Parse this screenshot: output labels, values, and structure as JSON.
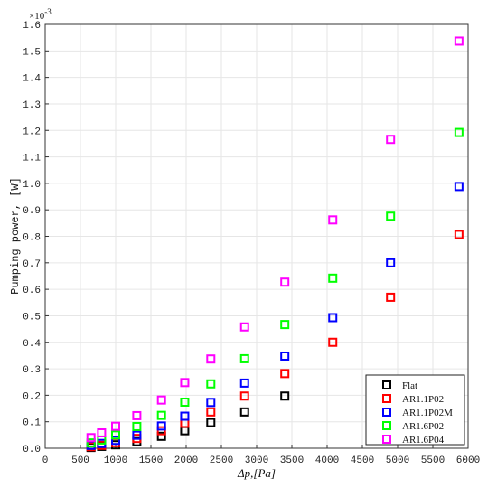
{
  "chart_data": {
    "type": "scatter",
    "xlabel": "Δp,[Pa]",
    "ylabel": "Pumping power, [W]",
    "y_multiplier": "×10",
    "y_multiplier_exp": "-3",
    "xlim": [
      0,
      6000
    ],
    "ylim": [
      0,
      1.6
    ],
    "xticks": [
      0,
      500,
      1000,
      1500,
      2000,
      2500,
      3000,
      3500,
      4000,
      4500,
      5000,
      5500,
      6000
    ],
    "yticks": [
      0,
      0.1,
      0.2,
      0.3,
      0.4,
      0.5,
      0.6,
      0.7,
      0.8,
      0.9,
      1.0,
      1.1,
      1.2,
      1.3,
      1.4,
      1.5,
      1.6
    ],
    "ytick_labels": [
      "0.0",
      "0.1",
      "0.2",
      "0.3",
      "0.4",
      "0.5",
      "0.6",
      "0.7",
      "0.8",
      "0.9",
      "1.0",
      "1.1",
      "1.2",
      "1.3",
      "1.4",
      "1.5",
      "1.6"
    ],
    "grid": true,
    "legend_position": "bottom-right",
    "marker": "square-open",
    "series": [
      {
        "name": "Flat",
        "color": "#000000",
        "x": [
          650,
          800,
          1000,
          1300,
          1650,
          1980,
          2350,
          2830,
          3400
        ],
        "y": [
          0.003,
          0.007,
          0.013,
          0.025,
          0.045,
          0.066,
          0.097,
          0.137,
          0.197
        ]
      },
      {
        "name": "AR1.1P02",
        "color": "#ff0000",
        "x": [
          650,
          800,
          1000,
          1300,
          1650,
          1980,
          2350,
          2830,
          3400,
          4080,
          4900,
          5870
        ],
        "y": [
          0.006,
          0.011,
          0.021,
          0.037,
          0.066,
          0.094,
          0.137,
          0.197,
          0.282,
          0.4,
          0.57,
          0.807
        ]
      },
      {
        "name": "AR1.1P02M",
        "color": "#0000ff",
        "x": [
          650,
          800,
          1000,
          1300,
          1650,
          1980,
          2350,
          2830,
          3400,
          4080,
          4900,
          5870
        ],
        "y": [
          0.011,
          0.018,
          0.03,
          0.049,
          0.084,
          0.121,
          0.173,
          0.246,
          0.348,
          0.493,
          0.7,
          0.988
        ]
      },
      {
        "name": "AR1.6P02",
        "color": "#00ff00",
        "x": [
          650,
          800,
          1000,
          1300,
          1650,
          1980,
          2350,
          2830,
          3400,
          4080,
          4900,
          5870
        ],
        "y": [
          0.02,
          0.031,
          0.05,
          0.082,
          0.124,
          0.174,
          0.243,
          0.338,
          0.467,
          0.642,
          0.876,
          1.192
        ]
      },
      {
        "name": "AR1.6P04",
        "color": "#ff00ff",
        "x": [
          650,
          800,
          1000,
          1300,
          1650,
          1980,
          2350,
          2830,
          3400,
          4080,
          4900,
          5870
        ],
        "y": [
          0.04,
          0.058,
          0.083,
          0.123,
          0.182,
          0.248,
          0.337,
          0.458,
          0.627,
          0.862,
          1.166,
          1.537
        ]
      }
    ]
  }
}
